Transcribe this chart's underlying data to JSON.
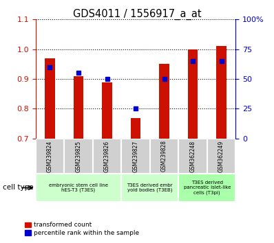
{
  "title": "GDS4011 / 1556917_a_at",
  "samples": [
    "GSM239824",
    "GSM239825",
    "GSM239826",
    "GSM239827",
    "GSM239828",
    "GSM362248",
    "GSM362249"
  ],
  "red_values": [
    0.97,
    0.91,
    0.888,
    0.768,
    0.95,
    1.0,
    1.01
  ],
  "blue_values": [
    60,
    55,
    50,
    25,
    50,
    65,
    65
  ],
  "ylim_left": [
    0.7,
    1.1
  ],
  "ylim_right": [
    0,
    100
  ],
  "yticks_left": [
    0.7,
    0.8,
    0.9,
    1.0,
    1.1
  ],
  "yticks_right": [
    0,
    25,
    50,
    75,
    100
  ],
  "ytick_labels_right": [
    "0",
    "25",
    "50",
    "75",
    "100%"
  ],
  "bar_color": "#cc1100",
  "dot_color": "#0000cc",
  "cell_types": [
    {
      "label": "embryonic stem cell line\nhES-T3 (T3ES)",
      "start": 0,
      "end": 2,
      "color": "#ccffcc"
    },
    {
      "label": "T3ES derived embr\nyoid bodies (T3EB)",
      "start": 3,
      "end": 4,
      "color": "#ccffcc"
    },
    {
      "label": "T3ES derived\npancreatic islet-like\ncells (T3pi)",
      "start": 5,
      "end": 6,
      "color": "#aaffaa"
    }
  ],
  "legend_red": "transformed count",
  "legend_blue": "percentile rank within the sample",
  "bar_width": 0.35,
  "sample_box_color": "#d0d0d0"
}
